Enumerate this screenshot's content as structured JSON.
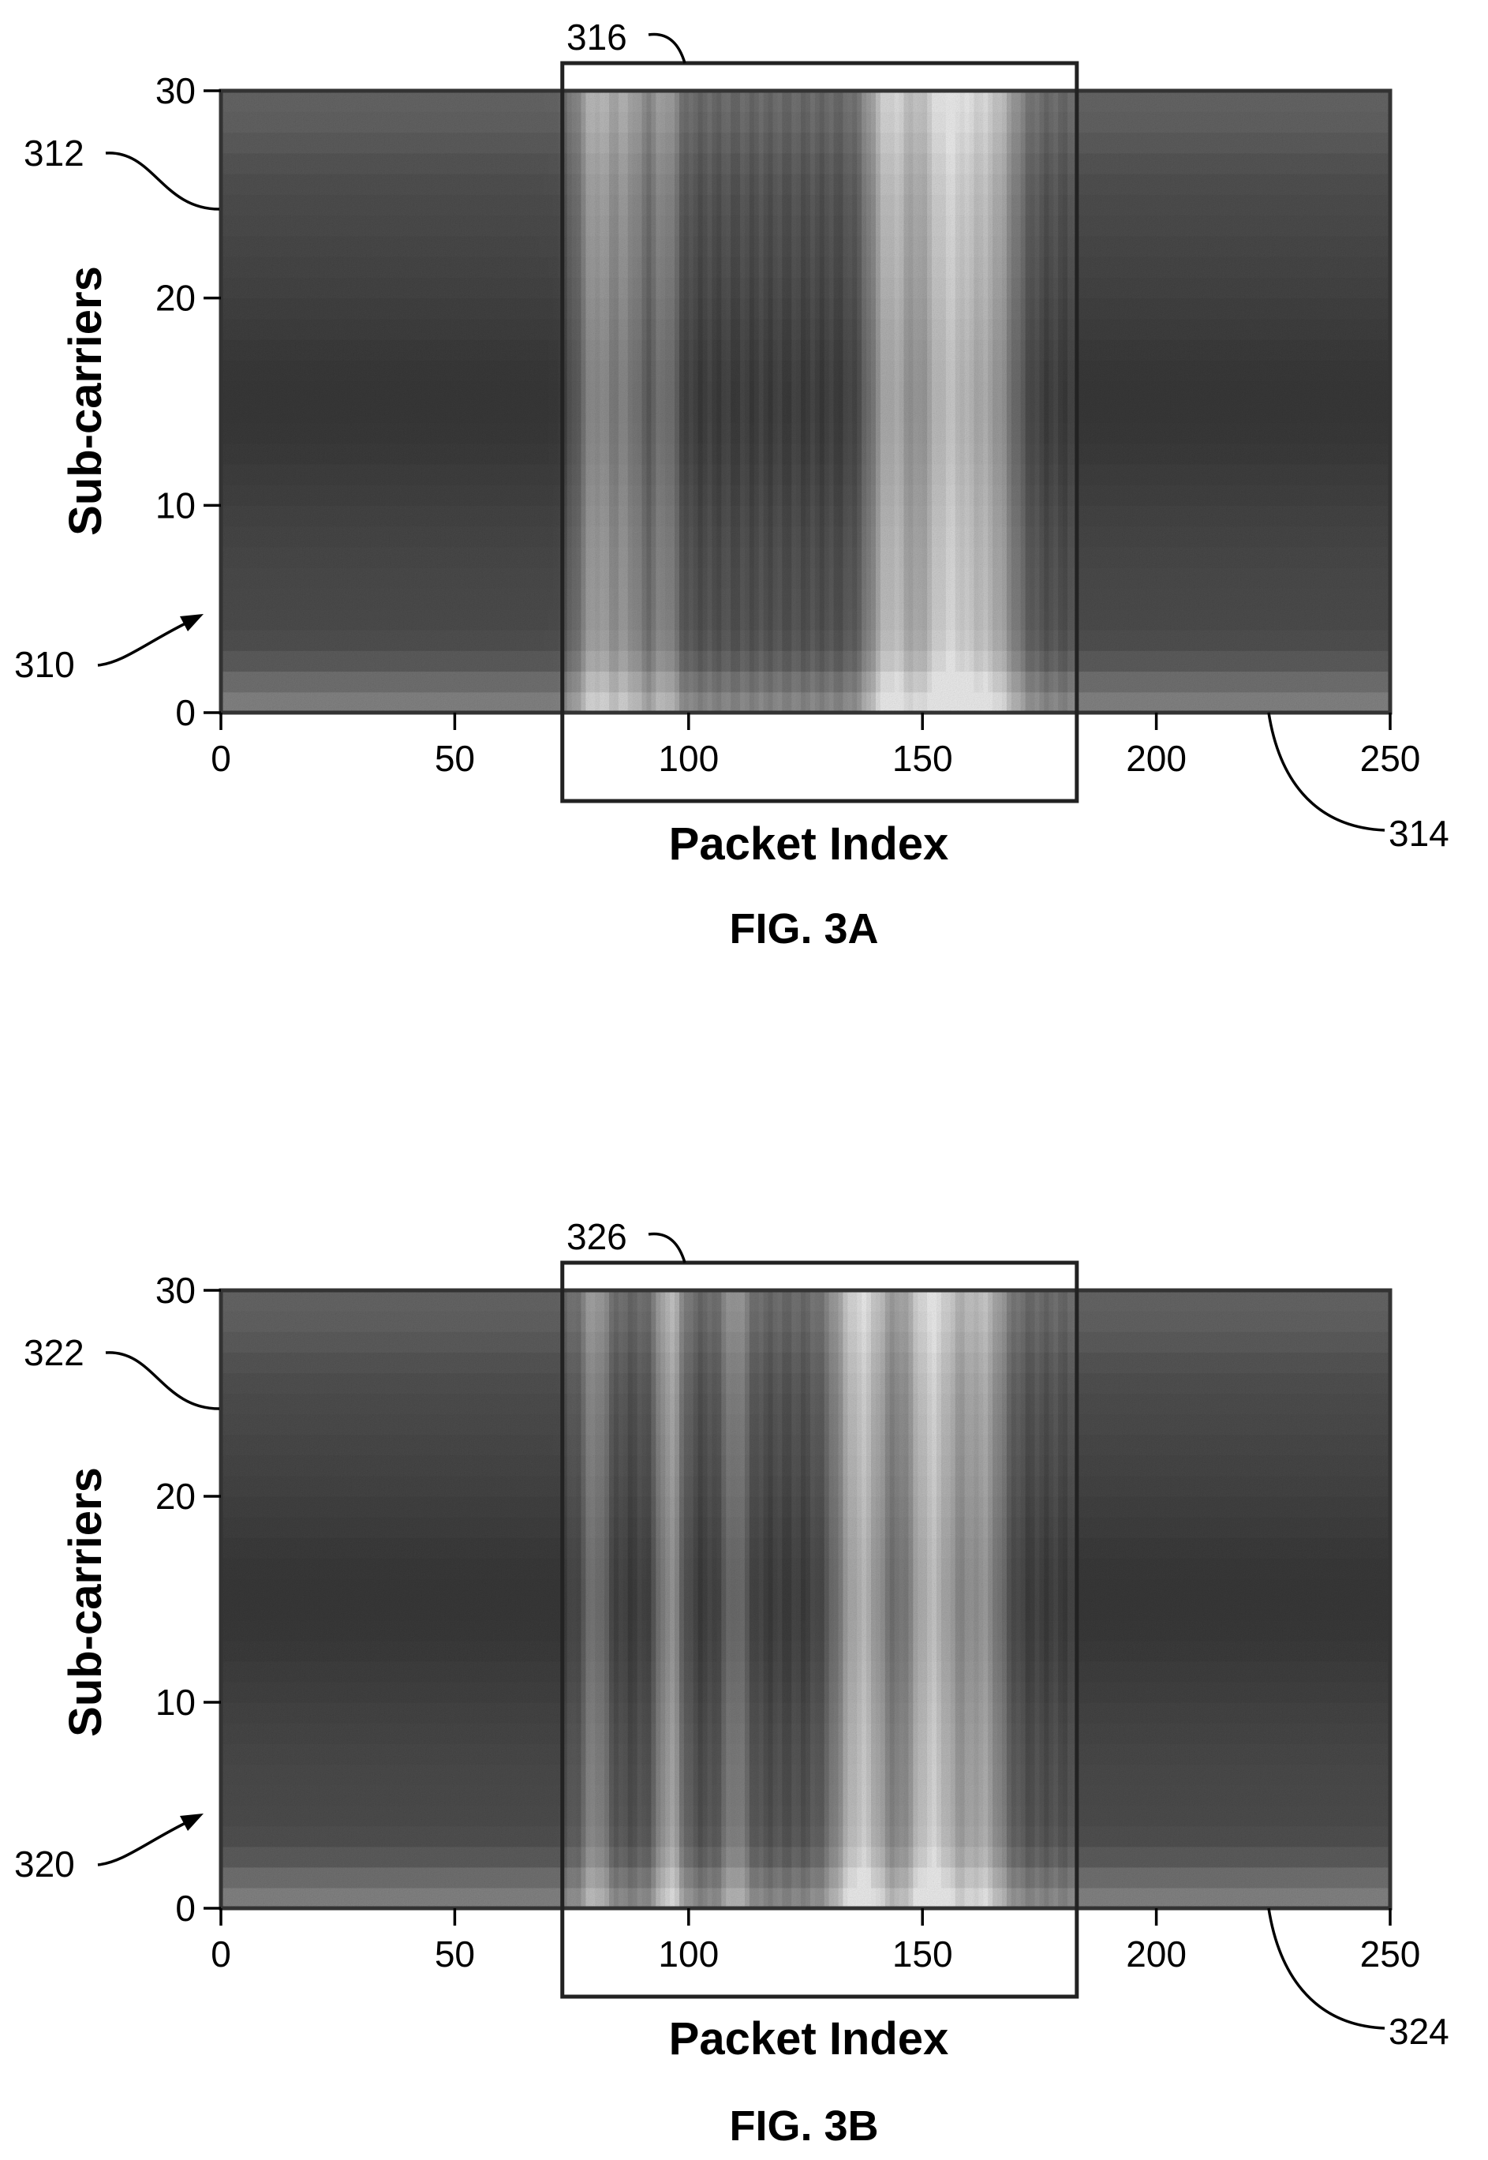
{
  "chart_data": [
    {
      "type": "heatmap",
      "caption": "FIG. 3A",
      "xlabel": "Packet Index",
      "ylabel": "Sub-carriers",
      "xlim": [
        0,
        250
      ],
      "ylim": [
        0,
        30
      ],
      "x_ticks": [
        0,
        50,
        100,
        150,
        200,
        250
      ],
      "y_ticks": [
        0,
        10,
        20,
        30
      ],
      "colormap": "grayscale",
      "highlight_region": {
        "x": [
          73,
          183
        ],
        "reference": "316"
      },
      "bright_bands": [
        {
          "x": 80,
          "width": 4,
          "strength": 0.55
        },
        {
          "x": 87,
          "width": 4,
          "strength": 0.45
        },
        {
          "x": 95,
          "width": 3,
          "strength": 0.4
        },
        {
          "x": 143,
          "width": 5,
          "strength": 0.75
        },
        {
          "x": 155,
          "width": 7,
          "strength": 0.9
        },
        {
          "x": 165,
          "width": 6,
          "strength": 0.6
        }
      ],
      "reference_numerals": {
        "top_subplot": "312",
        "bottom_subplot": "310",
        "x_axis": "314",
        "region": "316"
      }
    },
    {
      "type": "heatmap",
      "caption": "FIG. 3B",
      "xlabel": "Packet Index",
      "ylabel": "Sub-carriers",
      "xlim": [
        0,
        250
      ],
      "ylim": [
        0,
        30
      ],
      "x_ticks": [
        0,
        50,
        100,
        150,
        200,
        250
      ],
      "y_ticks": [
        0,
        10,
        20,
        30
      ],
      "colormap": "grayscale",
      "highlight_region": {
        "x": [
          73,
          183
        ],
        "reference": "326"
      },
      "bright_bands": [
        {
          "x": 80,
          "width": 3,
          "strength": 0.4
        },
        {
          "x": 96,
          "width": 3,
          "strength": 0.6
        },
        {
          "x": 110,
          "width": 3,
          "strength": 0.35
        },
        {
          "x": 137,
          "width": 6,
          "strength": 0.85
        },
        {
          "x": 152,
          "width": 6,
          "strength": 0.9
        },
        {
          "x": 163,
          "width": 5,
          "strength": 0.6
        }
      ],
      "reference_numerals": {
        "top_subplot": "322",
        "bottom_subplot": "320",
        "x_axis": "324",
        "region": "326"
      }
    }
  ]
}
